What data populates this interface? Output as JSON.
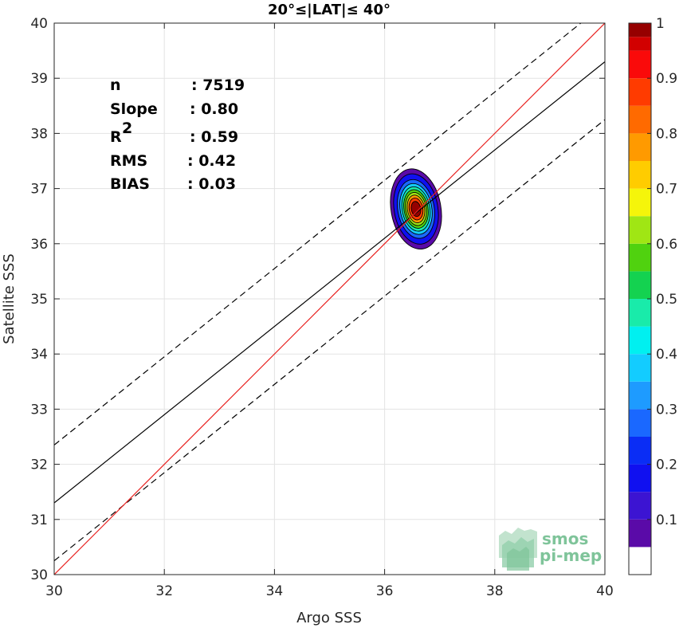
{
  "chart_data": {
    "type": "contour",
    "title": "20°≤|LAT|≤ 40°",
    "xlabel": "Argo SSS",
    "ylabel": "Satellite SSS",
    "xlim": [
      30,
      40
    ],
    "ylim": [
      30,
      40
    ],
    "xticks": [
      30,
      32,
      34,
      36,
      38,
      40
    ],
    "yticks": [
      30,
      31,
      32,
      33,
      34,
      35,
      36,
      37,
      38,
      39,
      40
    ],
    "grid": true,
    "stats": [
      {
        "label": "n",
        "sep": ":",
        "value": "7519"
      },
      {
        "label": "Slope",
        "sep": ":",
        "value": "0.80"
      },
      {
        "label": "R",
        "sup": "2",
        "sep": ":",
        "value": "0.59"
      },
      {
        "label": "RMS",
        "sep": ":",
        "value": "0.42"
      },
      {
        "label": "BIAS",
        "sep": ":",
        "value": "0.03"
      }
    ],
    "lines": {
      "identity": {
        "slope": 1.0,
        "intercept": 0.0,
        "color": "#e8211f"
      },
      "fit": {
        "slope": 0.8,
        "intercept": 7.3,
        "color": "#000000"
      },
      "fit_bounds": {
        "offset": 1.05,
        "color": "#000000",
        "style": "dashed"
      }
    },
    "density": {
      "center": [
        36.57,
        36.63
      ],
      "sigma_x": 0.185,
      "sigma_y": 0.3,
      "orientation_deg": 10,
      "levels": [
        0.05,
        0.1,
        0.2,
        0.3,
        0.4,
        0.5,
        0.6,
        0.7,
        0.8,
        0.9
      ],
      "normalized_max": 1
    },
    "colorbar": {
      "ticks": [
        "0.1",
        "0.2",
        "0.3",
        "0.4",
        "0.5",
        "0.6",
        "0.7",
        "0.8",
        "0.9",
        "1"
      ],
      "range": [
        0,
        1
      ],
      "bins": [
        {
          "lo": 0.0,
          "color": "#ffffff"
        },
        {
          "lo": 0.05,
          "color": "#5a0aa8"
        },
        {
          "lo": 0.1,
          "color": "#3c14d2"
        },
        {
          "lo": 0.15,
          "color": "#1010f0"
        },
        {
          "lo": 0.2,
          "color": "#0a2df5"
        },
        {
          "lo": 0.25,
          "color": "#1a68ff"
        },
        {
          "lo": 0.3,
          "color": "#1e9bff"
        },
        {
          "lo": 0.35,
          "color": "#13ccff"
        },
        {
          "lo": 0.4,
          "color": "#00f0f0"
        },
        {
          "lo": 0.45,
          "color": "#19ebaa"
        },
        {
          "lo": 0.5,
          "color": "#14d250"
        },
        {
          "lo": 0.55,
          "color": "#50d20f"
        },
        {
          "lo": 0.6,
          "color": "#a0e614"
        },
        {
          "lo": 0.65,
          "color": "#f5f50a"
        },
        {
          "lo": 0.7,
          "color": "#ffcc00"
        },
        {
          "lo": 0.75,
          "color": "#ff9a00"
        },
        {
          "lo": 0.8,
          "color": "#ff6a00"
        },
        {
          "lo": 0.85,
          "color": "#ff3b00"
        },
        {
          "lo": 0.9,
          "color": "#fa0a0a"
        },
        {
          "lo": 0.95,
          "color": "#d20000"
        },
        {
          "lo": 0.975,
          "color": "#960000"
        }
      ]
    },
    "logo": {
      "line1": "smos",
      "line2": "pi-mep"
    }
  }
}
